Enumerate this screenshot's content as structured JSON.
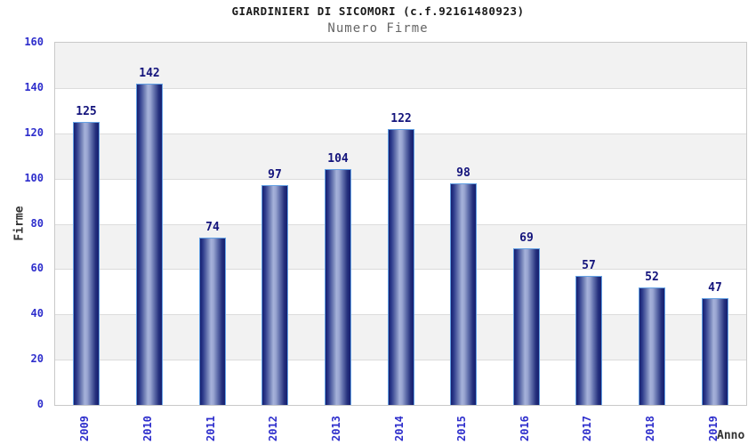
{
  "chart_data": {
    "type": "bar",
    "title": "GIARDINIERI DI SICOMORI (c.f.92161480923)",
    "subtitle": "Numero Firme",
    "categories": [
      "2009",
      "2010",
      "2011",
      "2012",
      "2013",
      "2014",
      "2015",
      "2016",
      "2017",
      "2018",
      "2019"
    ],
    "values": [
      125,
      142,
      74,
      97,
      104,
      122,
      98,
      69,
      57,
      52,
      47
    ],
    "xlabel": "Anno",
    "ylabel": "Firme",
    "ylim": [
      0,
      160
    ],
    "ytick_step": 20,
    "yticks": [
      0,
      20,
      40,
      60,
      80,
      100,
      120,
      140,
      160
    ],
    "grid": "horizontal-bands-on",
    "legend": "none",
    "colors": {
      "tick_label": "#2e2ecc",
      "value_label": "#14147c",
      "bar_border": "#63a0e3",
      "bar_dark": "#151f70",
      "bar_mid": "#5f6daa",
      "bar_light": "#a6b2da",
      "band_gray": "#f2f2f2",
      "band_white": "#ffffff",
      "grid_line": "#dcdcdc",
      "plot_border": "#c9c9c9",
      "title_color": "#1a1a1a",
      "subtitle_color": "#666666",
      "axis_title_color": "#333333"
    }
  }
}
